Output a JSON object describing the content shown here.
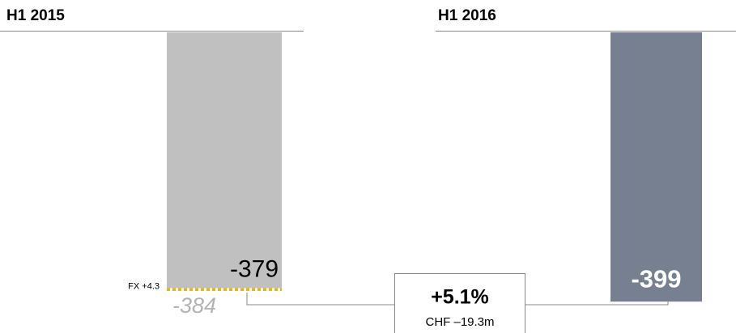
{
  "chart_data": {
    "type": "bar",
    "categories": [
      "H1 2015",
      "H1 2016"
    ],
    "series": [
      {
        "colors": [
          "#c0c0c0",
          "#768091"
        ],
        "values": [
          -379,
          -399
        ]
      }
    ],
    "ylim": [
      -400,
      0
    ],
    "fx_adjustment": {
      "label": "FX +4.3",
      "value": 4.3,
      "color": "#f2b400"
    },
    "adjusted_value": -384,
    "change": {
      "percent_label": "+5.1%",
      "amount_label": "CHF –19.3m"
    }
  }
}
